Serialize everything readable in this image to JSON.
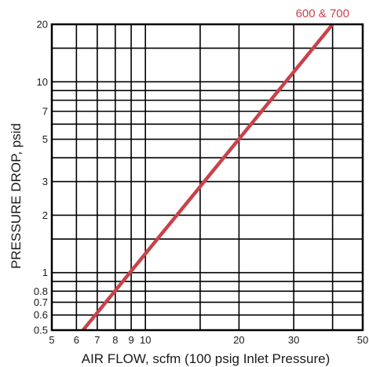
{
  "chart_data": {
    "type": "line",
    "title": "",
    "xlabel": "AIR FLOW, scfm (100 psig Inlet Pressure)",
    "ylabel": "PRESSURE DROP, psid",
    "x_scale": "log",
    "y_scale": "log",
    "xlim": [
      5,
      50
    ],
    "ylim": [
      0.5,
      20
    ],
    "x_ticks": [
      5,
      6,
      7,
      8,
      9,
      10,
      20,
      30,
      50
    ],
    "x_tick_labels": [
      "5",
      "6",
      "7",
      "8",
      "9",
      "10",
      "20",
      "30",
      "50"
    ],
    "y_ticks": [
      0.5,
      0.6,
      0.7,
      0.8,
      1,
      2,
      3,
      5,
      7,
      10,
      20
    ],
    "y_tick_labels": [
      "0.5",
      "0.6",
      "0.7",
      "0.8",
      "1",
      "2",
      "3",
      "5",
      "7",
      "10",
      "20"
    ],
    "x_gridlines": [
      5,
      6,
      7,
      8,
      9,
      10,
      15,
      20,
      30,
      40,
      50
    ],
    "y_gridlines": [
      0.5,
      0.6,
      0.7,
      0.8,
      0.9,
      1,
      1.5,
      2,
      3,
      4,
      5,
      6,
      7,
      8,
      9,
      10,
      15,
      20
    ],
    "grid": true,
    "series": [
      {
        "name": "600 & 700",
        "color": "#c8424a",
        "x": [
          6.3,
          40.0
        ],
        "y": [
          0.5,
          20
        ]
      }
    ]
  }
}
